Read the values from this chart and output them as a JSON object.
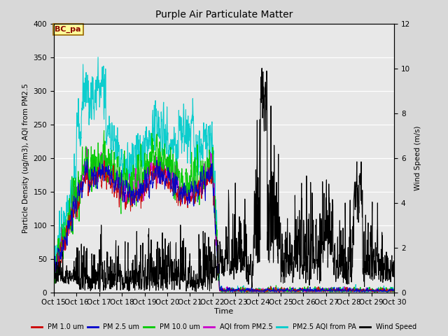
{
  "title": "Purple Air Particulate Matter",
  "xlabel": "Time",
  "ylabel_left": "Particle Density (ug/m3), AQI from PM2.5",
  "ylabel_right": "Wind Speed (m/s)",
  "annotation": "BC_pa",
  "xlim": [
    15,
    30
  ],
  "ylim_left": [
    0,
    400
  ],
  "ylim_right": [
    0,
    12
  ],
  "xtick_labels": [
    "Oct 15",
    "Oct 16",
    "Oct 17",
    "Oct 18",
    "Oct 19",
    "Oct 20",
    "Oct 21",
    "Oct 22",
    "Oct 23",
    "Oct 24",
    "Oct 25",
    "Oct 26",
    "Oct 27",
    "Oct 28",
    "Oct 29",
    "Oct 30"
  ],
  "xtick_positions": [
    15,
    16,
    17,
    18,
    19,
    20,
    21,
    22,
    23,
    24,
    25,
    26,
    27,
    28,
    29,
    30
  ],
  "yticks_left": [
    0,
    50,
    100,
    150,
    200,
    250,
    300,
    350,
    400
  ],
  "yticks_right": [
    0,
    2,
    4,
    6,
    8,
    10,
    12
  ],
  "colors": {
    "pm1": "#cc0000",
    "pm25": "#0000cc",
    "pm10": "#00cc00",
    "aqi_pm25": "#cc00cc",
    "aqi_pa": "#00cccc",
    "wind": "#000000"
  },
  "legend_labels": [
    "PM 1.0 um",
    "PM 2.5 um",
    "PM 10.0 um",
    "AQI from PM2.5",
    "PM2.5 AQI from PA",
    "Wind Speed"
  ],
  "background_color": "#d8d8d8",
  "plot_bg_color": "#e8e8e8"
}
